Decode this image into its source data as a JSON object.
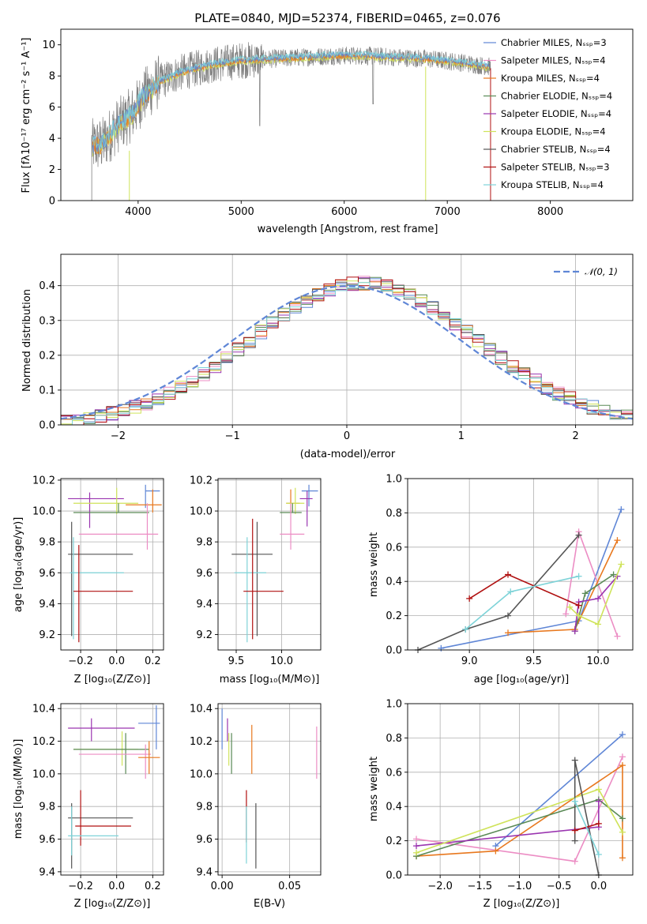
{
  "colors": {
    "chab_miles": "#5f86d6",
    "salp_miles": "#ec8dc4",
    "krou_miles": "#e8781e",
    "chab_elod": "#5a8a56",
    "salp_elod": "#9a35b0",
    "krou_elod": "#cfe35a",
    "chab_stel": "#555555",
    "salp_stel": "#b01010",
    "krou_stel": "#7ed3d8",
    "data": "#7f7f7f",
    "gauss": "#5f86d6"
  },
  "chart_data": [
    {
      "id": "spectrum",
      "type": "line",
      "title": "PLATE=0840, MJD=52374, FIBERID=0465, z=0.076",
      "xlabel": "wavelength [Angstrom, rest frame]",
      "ylabel": "Flux [fλ10⁻¹⁷ erg cm⁻² s⁻¹ A⁻¹]",
      "xlim": [
        3250,
        8800
      ],
      "ylim": [
        0,
        11
      ],
      "xticks": [
        "4000",
        "5000",
        "6000",
        "7000",
        "8000"
      ],
      "yticks": [
        "0",
        "2",
        "4",
        "6",
        "8",
        "10"
      ],
      "grid": false,
      "legend_position": "right",
      "legend": [
        "Chabrier MILES, Nₛₛₚ=3",
        "Salpeter MILES, Nₛₛₚ=4",
        "Kroupa MILES, Nₛₛₚ=4",
        "Chabrier ELODIE, Nₛₛₚ=4",
        "Salpeter ELODIE, Nₛₛₚ=4",
        "Kroupa ELODIE, Nₛₛₚ=4",
        "Chabrier STELIB, Nₛₛₚ=4",
        "Salpeter STELIB, Nₛₛₚ=3",
        "Kroupa STELIB, Nₛₛₚ=4"
      ],
      "data_envelope": {
        "x": [
          3550,
          3650,
          3800,
          3950,
          4050,
          4200,
          4400,
          4700,
          5000,
          5300,
          5600,
          5900,
          6200,
          6500,
          6800,
          7100,
          7400
        ],
        "y": [
          3.5,
          3.6,
          4.8,
          5.6,
          6.7,
          7.6,
          8.2,
          8.7,
          9.0,
          9.1,
          9.2,
          9.3,
          9.3,
          9.2,
          9.1,
          8.9,
          8.6
        ]
      }
    },
    {
      "id": "residuals",
      "type": "histogram",
      "xlabel": "(data-model)/error",
      "ylabel": "Normed distribution",
      "xlim": [
        -2.5,
        2.5
      ],
      "ylim": [
        0,
        0.49
      ],
      "xticks": [
        "−2",
        "−1",
        "0",
        "1",
        "2"
      ],
      "yticks": [
        "0.0",
        "0.1",
        "0.2",
        "0.3",
        "0.4"
      ],
      "grid": true,
      "legend": [
        "𝒩(0, 1)"
      ],
      "legend_position": "top-right"
    },
    {
      "id": "age_vs_Z",
      "type": "errorbar",
      "xlabel": "Z [log₁₀(Z/Z⊙)]",
      "ylabel": "age  [log₁₀(age/yr)]",
      "xlim": [
        -0.31,
        0.26
      ],
      "ylim": [
        9.1,
        10.21
      ],
      "xticks": [
        "−0.2",
        "0.0",
        "0.2"
      ],
      "yticks": [
        "9.2",
        "9.4",
        "9.6",
        "9.8",
        "10.0",
        "10.2"
      ],
      "grid": true,
      "points": [
        {
          "c": "chab_miles",
          "x": 0.16,
          "xe": [
            0.16,
            0.24
          ],
          "y": 10.13,
          "ye": [
            10.02,
            10.17
          ]
        },
        {
          "c": "krou_miles",
          "x": 0.2,
          "xe": [
            0.05,
            0.25
          ],
          "y": 10.04,
          "ye": [
            9.99,
            10.14
          ]
        },
        {
          "c": "salp_elod",
          "x": -0.15,
          "xe": [
            -0.27,
            0.04
          ],
          "y": 10.08,
          "ye": [
            9.89,
            10.12
          ]
        },
        {
          "c": "krou_elod",
          "x": 0.0,
          "xe": [
            -0.24,
            0.12
          ],
          "y": 10.05,
          "ye": [
            9.98,
            10.15
          ]
        },
        {
          "c": "chab_elod",
          "x": 0.01,
          "xe": [
            -0.24,
            0.18
          ],
          "y": 9.99,
          "ye": [
            9.99,
            10.05
          ]
        },
        {
          "c": "salp_miles",
          "x": 0.17,
          "xe": [
            -0.21,
            0.23
          ],
          "y": 9.85,
          "ye": [
            9.75,
            10.05
          ]
        },
        {
          "c": "chab_stel",
          "x": -0.25,
          "xe": [
            -0.27,
            0.09
          ],
          "y": 9.72,
          "ye": [
            9.19,
            9.93
          ]
        },
        {
          "c": "krou_stel",
          "x": -0.24,
          "xe": [
            -0.26,
            0.04
          ],
          "y": 9.6,
          "ye": [
            9.17,
            9.83
          ]
        },
        {
          "c": "salp_stel",
          "x": -0.21,
          "xe": [
            -0.24,
            0.09
          ],
          "y": 9.48,
          "ye": [
            9.15,
            9.78
          ]
        }
      ]
    },
    {
      "id": "age_vs_mass",
      "type": "errorbar",
      "xlabel": "mass [log₁₀(M/M⊙)]",
      "ylabel": "",
      "xlim": [
        9.3,
        10.43
      ],
      "ylim": [
        9.1,
        10.21
      ],
      "xticks": [
        "9.5",
        "10.0"
      ],
      "yticks": [
        "9.2",
        "9.4",
        "9.6",
        "9.8",
        "10.0",
        "10.2"
      ],
      "grid": true,
      "points": [
        {
          "c": "chab_miles",
          "x": 10.3,
          "xe": [
            10.22,
            10.4
          ],
          "y": 10.13,
          "ye": [
            10.03,
            10.17
          ]
        },
        {
          "c": "krou_miles",
          "x": 10.1,
          "xe": [
            10.05,
            10.2
          ],
          "y": 10.05,
          "ye": [
            9.99,
            10.14
          ]
        },
        {
          "c": "salp_elod",
          "x": 10.28,
          "xe": [
            10.2,
            10.34
          ],
          "y": 10.08,
          "ye": [
            9.9,
            10.13
          ]
        },
        {
          "c": "krou_elod",
          "x": 10.15,
          "xe": [
            10.05,
            10.25
          ],
          "y": 10.05,
          "ye": [
            9.98,
            10.15
          ]
        },
        {
          "c": "chab_elod",
          "x": 10.12,
          "xe": [
            9.98,
            10.22
          ],
          "y": 9.99,
          "ye": [
            9.99,
            10.05
          ]
        },
        {
          "c": "salp_miles",
          "x": 10.1,
          "xe": [
            9.98,
            10.25
          ],
          "y": 9.85,
          "ye": [
            9.75,
            10.05
          ]
        },
        {
          "c": "chab_stel",
          "x": 9.73,
          "xe": [
            9.45,
            9.9
          ],
          "y": 9.72,
          "ye": [
            9.19,
            9.93
          ]
        },
        {
          "c": "krou_stel",
          "x": 9.62,
          "xe": [
            9.48,
            9.83
          ],
          "y": 9.6,
          "ye": [
            9.15,
            9.83
          ]
        },
        {
          "c": "salp_stel",
          "x": 9.68,
          "xe": [
            9.58,
            10.02
          ],
          "y": 9.48,
          "ye": [
            9.17,
            9.95
          ]
        }
      ]
    },
    {
      "id": "mw_vs_age",
      "type": "line",
      "xlabel": "age  [log₁₀(age/yr)]",
      "ylabel": "mass weight",
      "xlim": [
        8.52,
        10.27
      ],
      "ylim": [
        0,
        1.0
      ],
      "xticks": [
        "9.0",
        "9.5",
        "10.0"
      ],
      "yticks": [
        "0.0",
        "0.2",
        "0.4",
        "0.6",
        "0.8",
        "1.0"
      ],
      "grid": true,
      "series": [
        {
          "c": "chab_miles",
          "x": [
            8.78,
            9.85,
            10.18
          ],
          "y": [
            0.01,
            0.17,
            0.82
          ]
        },
        {
          "c": "salp_miles",
          "x": [
            9.75,
            9.85,
            10.15
          ],
          "y": [
            0.21,
            0.69,
            0.08
          ]
        },
        {
          "c": "krou_miles",
          "x": [
            9.3,
            9.82,
            10.15
          ],
          "y": [
            0.1,
            0.12,
            0.64
          ]
        },
        {
          "c": "chab_elod",
          "x": [
            9.82,
            9.9,
            10.12
          ],
          "y": [
            0.11,
            0.33,
            0.44
          ]
        },
        {
          "c": "salp_elod",
          "x": [
            9.82,
            9.85,
            10.0,
            10.15
          ],
          "y": [
            0.11,
            0.28,
            0.3,
            0.43
          ]
        },
        {
          "c": "krou_elod",
          "x": [
            9.78,
            9.85,
            10.0,
            10.18
          ],
          "y": [
            0.25,
            0.2,
            0.15,
            0.5
          ]
        },
        {
          "c": "chab_stel",
          "x": [
            8.6,
            8.97,
            9.3,
            9.85
          ],
          "y": [
            0.0,
            0.12,
            0.2,
            0.67
          ]
        },
        {
          "c": "salp_stel",
          "x": [
            9.0,
            9.3,
            9.85
          ],
          "y": [
            0.3,
            0.44,
            0.26
          ]
        },
        {
          "c": "krou_stel",
          "x": [
            8.97,
            9.32,
            9.85
          ],
          "y": [
            0.12,
            0.34,
            0.43
          ]
        }
      ]
    },
    {
      "id": "mass_vs_Z",
      "type": "errorbar",
      "xlabel": "Z [log₁₀(Z/Z⊙)]",
      "ylabel": "mass [log₁₀(M/M⊙)]",
      "xlim": [
        -0.31,
        0.26
      ],
      "ylim": [
        9.38,
        10.43
      ],
      "xticks": [
        "−0.2",
        "0.0",
        "0.2"
      ],
      "yticks": [
        "9.4",
        "9.6",
        "9.8",
        "10.0",
        "10.2",
        "10.4"
      ],
      "grid": true,
      "points": [
        {
          "c": "chab_miles",
          "x": 0.22,
          "xe": [
            0.12,
            0.24
          ],
          "y": 10.31,
          "ye": [
            10.15,
            10.42
          ]
        },
        {
          "c": "salp_elod",
          "x": -0.14,
          "xe": [
            -0.27,
            0.1
          ],
          "y": 10.28,
          "ye": [
            10.2,
            10.34
          ]
        },
        {
          "c": "krou_elod",
          "x": 0.03,
          "xe": [
            -0.24,
            0.12
          ],
          "y": 10.15,
          "ye": [
            10.05,
            10.26
          ]
        },
        {
          "c": "chab_elod",
          "x": 0.05,
          "xe": [
            -0.24,
            0.18
          ],
          "y": 10.15,
          "ye": [
            10.0,
            10.25
          ]
        },
        {
          "c": "salp_miles",
          "x": 0.16,
          "xe": [
            -0.21,
            0.19
          ],
          "y": 10.12,
          "ye": [
            9.97,
            10.18
          ]
        },
        {
          "c": "krou_miles",
          "x": 0.18,
          "xe": [
            0.12,
            0.24
          ],
          "y": 10.1,
          "ye": [
            10.0,
            10.2
          ]
        },
        {
          "c": "chab_stel",
          "x": -0.25,
          "xe": [
            -0.27,
            0.09
          ],
          "y": 9.73,
          "ye": [
            9.42,
            9.82
          ]
        },
        {
          "c": "salp_stel",
          "x": -0.2,
          "xe": [
            -0.23,
            0.08
          ],
          "y": 9.68,
          "ye": [
            9.56,
            9.9
          ]
        },
        {
          "c": "krou_stel",
          "x": -0.25,
          "xe": [
            -0.27,
            0.01
          ],
          "y": 9.62,
          "ye": [
            9.5,
            9.8
          ]
        }
      ]
    },
    {
      "id": "mass_vs_EBV",
      "type": "errorbar",
      "xlabel": "E(B-V)",
      "ylabel": "",
      "xlim": [
        -0.003,
        0.073
      ],
      "ylim": [
        9.38,
        10.43
      ],
      "xticks": [
        "0.00",
        "0.05"
      ],
      "yticks": [
        "9.4",
        "9.6",
        "9.8",
        "10.0",
        "10.2",
        "10.4"
      ],
      "grid": true,
      "points": [
        {
          "c": "chab_miles",
          "x": 0.0,
          "y": 10.31,
          "ye": [
            10.15,
            10.4
          ]
        },
        {
          "c": "salp_elod",
          "x": 0.004,
          "y": 10.28,
          "ye": [
            10.2,
            10.34
          ]
        },
        {
          "c": "krou_elod",
          "x": 0.005,
          "y": 10.15,
          "ye": [
            10.05,
            10.25
          ]
        },
        {
          "c": "chab_elod",
          "x": 0.007,
          "y": 10.15,
          "ye": [
            10.0,
            10.25
          ]
        },
        {
          "c": "krou_miles",
          "x": 0.022,
          "y": 10.1,
          "ye": [
            10.0,
            10.3
          ]
        },
        {
          "c": "salp_miles",
          "x": 0.07,
          "y": 10.12,
          "ye": [
            9.97,
            10.29
          ]
        },
        {
          "c": "salp_stel",
          "x": 0.018,
          "y": 9.68,
          "ye": [
            9.58,
            9.9
          ]
        },
        {
          "c": "krou_stel",
          "x": 0.018,
          "y": 9.62,
          "ye": [
            9.45,
            9.8
          ]
        },
        {
          "c": "chab_stel",
          "x": 0.025,
          "y": 9.73,
          "ye": [
            9.42,
            9.82
          ]
        }
      ]
    },
    {
      "id": "mw_vs_Z",
      "type": "line",
      "xlabel": "Z [log₁₀(Z/Z⊙)]",
      "ylabel": "mass weight",
      "xlim": [
        -2.41,
        0.43
      ],
      "ylim": [
        0,
        1.0
      ],
      "xticks": [
        "−2.0",
        "−1.5",
        "−1.0",
        "−0.5",
        "0.0"
      ],
      "yticks": [
        "0.0",
        "0.2",
        "0.4",
        "0.6",
        "0.8",
        "1.0"
      ],
      "grid": true,
      "series": [
        {
          "c": "chab_miles",
          "x": [
            -1.3,
            0.3
          ],
          "y": [
            0.17,
            0.82
          ]
        },
        {
          "c": "salp_miles",
          "x": [
            -2.3,
            -0.3,
            0.3
          ],
          "y": [
            0.21,
            0.08,
            0.69
          ]
        },
        {
          "c": "krou_miles",
          "x": [
            -2.3,
            -1.3,
            0.3,
            0.3
          ],
          "y": [
            0.11,
            0.14,
            0.64,
            0.1
          ]
        },
        {
          "c": "chab_elod",
          "x": [
            -2.3,
            0.0,
            0.3
          ],
          "y": [
            0.11,
            0.44,
            0.33
          ]
        },
        {
          "c": "salp_elod",
          "x": [
            -2.3,
            0.0,
            0.0
          ],
          "y": [
            0.17,
            0.28,
            0.43
          ]
        },
        {
          "c": "krou_elod",
          "x": [
            -2.3,
            0.0,
            0.3
          ],
          "y": [
            0.13,
            0.5,
            0.25
          ]
        },
        {
          "c": "chab_stel",
          "x": [
            -0.3,
            -0.3,
            0.0
          ],
          "y": [
            0.2,
            0.67,
            0.0
          ]
        },
        {
          "c": "salp_stel",
          "x": [
            -0.3,
            0.0
          ],
          "y": [
            0.26,
            0.3
          ]
        },
        {
          "c": "krou_stel",
          "x": [
            -0.3,
            0.0
          ],
          "y": [
            0.43,
            0.12
          ]
        }
      ]
    }
  ]
}
